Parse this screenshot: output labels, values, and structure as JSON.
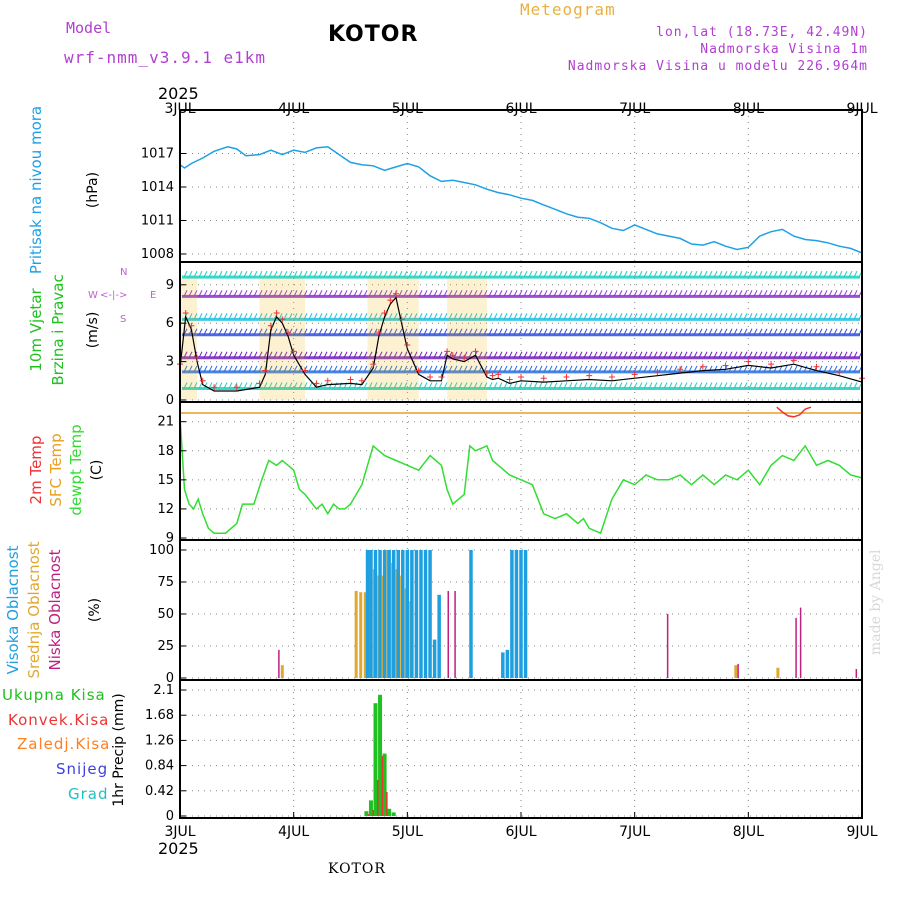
{
  "header": {
    "model_label": "Model",
    "model_run": "wrf-nmm_v3.9.1 e1km",
    "title": "KOTOR",
    "product": "Meteogram",
    "lonlat": "lon,lat (18.73E, 42.49N)",
    "altitude": "Nadmorska Visina 1m",
    "model_altitude": "Nadmorska Visina u modelu 226.964m"
  },
  "footer": {
    "location": "KOTOR",
    "credit": "made by Angel"
  },
  "time_axis": {
    "year": "2025",
    "ticks": [
      "3JUL",
      "4JUL",
      "5JUL",
      "6JUL",
      "7JUL",
      "8JUL",
      "9JUL"
    ]
  },
  "colors": {
    "pressure": "#1ea0e6",
    "wind_label": "#20c020",
    "temp2m": "#ee3333",
    "sfc_temp": "#e8a020",
    "dewpt": "#33dd33",
    "cloud_high": "#1e9fe0",
    "cloud_mid": "#e0a830",
    "cloud_low": "#c02080",
    "precip_total": "#20c020",
    "precip_conv": "#ee3333",
    "precip_frz": "#ff8020",
    "snow": "#4040e0",
    "graupel": "#20c0c0",
    "grid": "#888888",
    "compass": "#c060d0"
  },
  "panels": {
    "pressure": {
      "label": "Pritisak na nivou mora",
      "unit": "(hPa)",
      "ticks": [
        "1008",
        "1011",
        "1014",
        "1017"
      ]
    },
    "wind": {
      "label1": "10m Vjetar",
      "label2": "Brzina i Pravac",
      "unit": "(m/s)",
      "ticks": [
        "0",
        "3",
        "6",
        "9"
      ],
      "compass": {
        "west": "W",
        "east": "E",
        "north": "N",
        "south": "S",
        "arrows": "<-|->"
      }
    },
    "temp": {
      "label1": "2m Temp",
      "label2": "SFC Temp",
      "label3": "dewpt Temp",
      "unit": "(C)",
      "ticks": [
        "9",
        "12",
        "15",
        "18",
        "21"
      ]
    },
    "cloud": {
      "label1": "Visoka Oblacnost",
      "label2": "Srednja Oblacnost",
      "label3": "Niska Oblacnost",
      "unit": "(%)",
      "ticks": [
        "0",
        "25",
        "50",
        "75",
        "100"
      ]
    },
    "precip": {
      "labels": [
        "Ukupna Kisa",
        "Konvek.Kisa",
        "Zaledj.Kisa",
        "Snijeg",
        "Grad"
      ],
      "unit": "1hr Precip (mm)",
      "ticks": [
        "0",
        "0.42",
        "0.84",
        "1.26",
        "1.68",
        "2.1"
      ]
    }
  },
  "chart_data": [
    {
      "type": "line",
      "name": "pressure",
      "ylim": [
        1008,
        1020
      ],
      "x_days": [
        0,
        0.04,
        0.1,
        0.2,
        0.3,
        0.42,
        0.5,
        0.58,
        0.7,
        0.8,
        0.9,
        1.0,
        1.1,
        1.2,
        1.3,
        1.4,
        1.5,
        1.6,
        1.7,
        1.8,
        1.9,
        2.0,
        2.1,
        2.2,
        2.3,
        2.4,
        2.5,
        2.6,
        2.7,
        2.8,
        2.9,
        3.0,
        3.1,
        3.2,
        3.3,
        3.4,
        3.5,
        3.6,
        3.7,
        3.8,
        3.9,
        4.0,
        4.1,
        4.2,
        4.3,
        4.4,
        4.5,
        4.6,
        4.7,
        4.8,
        4.9,
        5.0,
        5.1,
        5.2,
        5.3,
        5.4,
        5.5,
        5.6,
        5.7,
        5.8,
        5.9,
        6.0
      ],
      "values": [
        1016.0,
        1015.7,
        1016.1,
        1016.6,
        1017.2,
        1017.6,
        1017.4,
        1016.8,
        1016.9,
        1017.3,
        1016.9,
        1017.3,
        1017.1,
        1017.5,
        1017.6,
        1016.9,
        1016.2,
        1016.0,
        1015.9,
        1015.5,
        1015.8,
        1016.1,
        1015.8,
        1015.0,
        1014.5,
        1014.6,
        1014.4,
        1014.2,
        1013.8,
        1013.5,
        1013.3,
        1013.0,
        1012.8,
        1012.4,
        1012.0,
        1011.6,
        1011.3,
        1011.2,
        1010.8,
        1010.3,
        1010.1,
        1010.6,
        1010.2,
        1009.8,
        1009.6,
        1009.4,
        1008.9,
        1008.8,
        1009.1,
        1008.7,
        1008.4,
        1008.6,
        1009.6,
        1010.0,
        1010.2,
        1009.6,
        1009.3,
        1009.2,
        1009.0,
        1008.7,
        1008.5,
        1008.1
      ]
    },
    {
      "type": "line",
      "name": "wind_speed",
      "ylim": [
        0,
        10
      ],
      "x_days": [
        0,
        0.05,
        0.1,
        0.15,
        0.2,
        0.3,
        0.5,
        0.7,
        0.75,
        0.8,
        0.85,
        0.9,
        0.95,
        1.0,
        1.1,
        1.2,
        1.3,
        1.5,
        1.6,
        1.7,
        1.75,
        1.8,
        1.85,
        1.9,
        1.95,
        2.0,
        2.1,
        2.2,
        2.3,
        2.35,
        2.4,
        2.5,
        2.6,
        2.7,
        2.75,
        2.8,
        2.9,
        3.0,
        3.2,
        3.4,
        3.6,
        3.8,
        4.0,
        4.2,
        4.4,
        4.6,
        4.8,
        5.0,
        5.2,
        5.4,
        5.6,
        5.8,
        6.0
      ],
      "values": [
        2.5,
        6.5,
        5.5,
        3.0,
        1.2,
        0.7,
        0.7,
        1.0,
        2.0,
        5.5,
        6.5,
        6.0,
        5.0,
        3.5,
        2.0,
        1.0,
        1.2,
        1.3,
        1.2,
        2.5,
        5.0,
        6.5,
        7.5,
        8.0,
        6.0,
        4.0,
        2.0,
        1.5,
        1.5,
        3.5,
        3.2,
        3.0,
        3.5,
        1.8,
        1.6,
        1.7,
        1.3,
        1.5,
        1.4,
        1.5,
        1.6,
        1.5,
        1.7,
        1.9,
        2.1,
        2.3,
        2.4,
        2.7,
        2.5,
        2.8,
        2.3,
        1.9,
        1.4
      ]
    },
    {
      "type": "line",
      "name": "dewpoint_temperature",
      "ylim": [
        9,
        22
      ],
      "sfc_temp_const": 21.9,
      "x_days": [
        0,
        0.04,
        0.08,
        0.12,
        0.16,
        0.2,
        0.25,
        0.3,
        0.4,
        0.5,
        0.55,
        0.65,
        0.72,
        0.78,
        0.85,
        0.9,
        0.95,
        1.0,
        1.05,
        1.1,
        1.2,
        1.25,
        1.3,
        1.35,
        1.4,
        1.45,
        1.5,
        1.6,
        1.7,
        1.75,
        1.8,
        1.9,
        2.0,
        2.1,
        2.2,
        2.3,
        2.35,
        2.4,
        2.5,
        2.55,
        2.6,
        2.7,
        2.75,
        2.8,
        2.9,
        3.0,
        3.1,
        3.2,
        3.3,
        3.4,
        3.5,
        3.55,
        3.6,
        3.7,
        3.8,
        3.9,
        4.0,
        4.1,
        4.2,
        4.3,
        4.4,
        4.5,
        4.6,
        4.7,
        4.8,
        4.9,
        5.0,
        5.1,
        5.2,
        5.3,
        5.4,
        5.5,
        5.6,
        5.7,
        5.8,
        5.9,
        6.0
      ],
      "values": [
        21.5,
        14.0,
        12.5,
        12.0,
        13.0,
        11.5,
        10.0,
        9.5,
        9.5,
        10.5,
        12.5,
        12.5,
        15.0,
        17.0,
        16.5,
        17.0,
        16.5,
        16.0,
        14.0,
        13.5,
        12.0,
        12.5,
        11.5,
        12.5,
        12.0,
        12.0,
        12.5,
        14.5,
        18.5,
        18.0,
        17.5,
        17.0,
        16.5,
        16.0,
        17.5,
        16.5,
        14.0,
        12.5,
        13.5,
        18.5,
        18.0,
        18.5,
        17.0,
        16.5,
        15.5,
        15.0,
        14.5,
        11.5,
        11.0,
        11.5,
        10.5,
        11.0,
        10.0,
        9.5,
        13.0,
        15.0,
        14.5,
        15.5,
        15.0,
        15.0,
        15.5,
        14.5,
        15.5,
        14.5,
        15.5,
        15.0,
        16.0,
        14.5,
        16.5,
        17.5,
        17.0,
        18.5,
        16.5,
        17.0,
        16.5,
        15.5,
        15.2
      ]
    },
    {
      "type": "line",
      "name": "2m_temperature_visible_fragment",
      "ylim": [
        9,
        22
      ],
      "x_days": [
        5.25,
        5.3,
        5.35,
        5.4,
        5.45,
        5.5,
        5.55
      ],
      "values": [
        22.5,
        22.0,
        21.6,
        21.5,
        21.7,
        22.3,
        22.5
      ]
    },
    {
      "type": "bar",
      "name": "cloud_cover",
      "ylim": [
        0,
        100
      ],
      "high": {
        "x_days": [
          1.65,
          1.68,
          1.72,
          1.76,
          1.8,
          1.84,
          1.88,
          1.92,
          1.96,
          2.0,
          2.04,
          2.08,
          2.12,
          2.16,
          2.2,
          2.24,
          2.28,
          2.56,
          2.84,
          2.88,
          2.92,
          2.96,
          3.0,
          3.04
        ],
        "values": [
          100,
          100,
          100,
          100,
          100,
          100,
          100,
          100,
          100,
          100,
          100,
          100,
          100,
          100,
          100,
          30,
          65,
          100,
          20,
          22,
          100,
          100,
          100,
          100
        ]
      },
      "mid": {
        "x_days": [
          1.55,
          1.59,
          1.63,
          1.67,
          1.71,
          1.75,
          1.79,
          1.83,
          1.87,
          1.91,
          1.95,
          1.99,
          2.03,
          0.9,
          5.26,
          4.89
        ],
        "values": [
          68,
          67,
          67,
          100,
          85,
          80,
          80,
          100,
          90,
          85,
          80,
          70,
          60,
          10,
          8,
          10
        ]
      },
      "low": {
        "x_days": [
          0.87,
          2.36,
          2.42,
          4.29,
          4.91,
          5.42,
          5.46,
          5.95
        ],
        "values": [
          22,
          68,
          68,
          50,
          11,
          47,
          55,
          7
        ]
      }
    },
    {
      "type": "bar",
      "name": "precipitation_1hr",
      "ylim": [
        0,
        2.1
      ],
      "total": {
        "x_days": [
          1.64,
          1.68,
          1.72,
          1.76,
          1.8,
          1.84,
          1.88
        ],
        "values": [
          0.08,
          0.26,
          1.88,
          2.02,
          1.04,
          0.12,
          0.06
        ]
      },
      "conv": {
        "x_days": [
          1.66,
          1.7,
          1.74,
          1.78,
          1.82
        ],
        "values": [
          0.03,
          0.1,
          0.6,
          1.0,
          0.4
        ]
      }
    }
  ]
}
